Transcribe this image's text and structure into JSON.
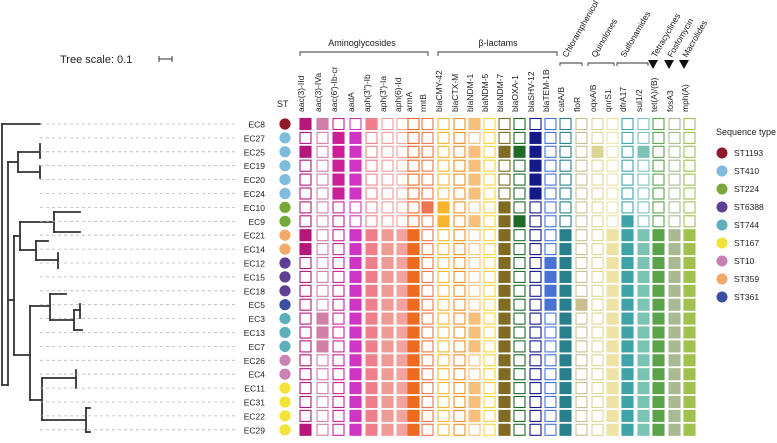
{
  "tree_scale": "Tree scale: 0.1",
  "st_header": "ST",
  "isolates": [
    "EC8",
    "EC27",
    "EC25",
    "EC19",
    "EC20",
    "EC24",
    "EC10",
    "EC9",
    "EC21",
    "EC14",
    "EC12",
    "EC15",
    "EC18",
    "EC5",
    "EC3",
    "EC13",
    "EC7",
    "EC26",
    "EC4",
    "EC11",
    "EC31",
    "EC22",
    "EC29"
  ],
  "isolate_st": [
    "ST1193",
    "ST410",
    "ST410",
    "ST410",
    "ST410",
    "ST410",
    "ST224",
    "ST224",
    "ST359",
    "ST359",
    "ST6388",
    "ST6388",
    "ST6388",
    "ST361",
    "ST744",
    "ST744",
    "ST744",
    "ST10",
    "ST10",
    "ST167",
    "ST167",
    "ST167",
    "ST167"
  ],
  "legend": {
    "title": "Sequence type",
    "items": [
      {
        "label": "ST1193",
        "color": "#8e1a2c"
      },
      {
        "label": "ST410",
        "color": "#7fbcdc"
      },
      {
        "label": "ST224",
        "color": "#78a83c"
      },
      {
        "label": "ST6388",
        "color": "#5e3f94"
      },
      {
        "label": "ST744",
        "color": "#5eafbb"
      },
      {
        "label": "ST167",
        "color": "#f2e23a"
      },
      {
        "label": "ST10",
        "color": "#c983b3"
      },
      {
        "label": "ST359",
        "color": "#f2a96a"
      },
      {
        "label": "ST361",
        "color": "#3a4f9d"
      }
    ]
  },
  "classes": [
    {
      "label": "Aminoglycosides",
      "orientation": "horizontal"
    },
    {
      "label": "β-lactams",
      "orientation": "horizontal"
    },
    {
      "label": "Chloramphenicol",
      "orientation": "angled"
    },
    {
      "label": "Quinolones",
      "orientation": "angled"
    },
    {
      "label": "Sulfonamides",
      "orientation": "angled"
    },
    {
      "label": "Tetracyclines",
      "orientation": "angled"
    },
    {
      "label": "Fosfomycin",
      "orientation": "angled"
    },
    {
      "label": "Macrolides",
      "orientation": "angled"
    }
  ],
  "genes": [
    {
      "label": "aac(3)-IId",
      "color": "#b5177a"
    },
    {
      "label": "aac(3)-IVa",
      "color": "#cf7fa8"
    },
    {
      "label": "aac(6')-Ib-cr",
      "color": "#cc1f95"
    },
    {
      "label": "aadA",
      "color": "#cf35c2"
    },
    {
      "label": "aph(3'')-Ib",
      "color": "#f07f8c"
    },
    {
      "label": "aph(3')-Ia",
      "color": "#ef9b95"
    },
    {
      "label": "aph(6)-Id",
      "color": "#f2a3a0"
    },
    {
      "label": "armA",
      "color": "#ed6a1f"
    },
    {
      "label": "rmtB",
      "color": "#ec7552"
    },
    {
      "label": "blaCMY-42",
      "color": "#f7b42f"
    },
    {
      "label": "blaCTX-M",
      "color": "#f58c1e"
    },
    {
      "label": "blaNDM-1",
      "color": "#f7c07a"
    },
    {
      "label": "blaNDM-5",
      "color": "#f7d23a"
    },
    {
      "label": "blaNDM-7",
      "color": "#7f6b22"
    },
    {
      "label": "blaOXA-1",
      "color": "#1f6b26"
    },
    {
      "label": "blaSHV-12",
      "color": "#151a8a"
    },
    {
      "label": "blaTEM-1B",
      "color": "#4a72d2"
    },
    {
      "label": "catA/B",
      "color": "#2a7f8c"
    },
    {
      "label": "floR",
      "color": "#c8be90"
    },
    {
      "label": "oqxA/B",
      "color": "#ddd595"
    },
    {
      "label": "qnrS1",
      "color": "#eee2a4"
    },
    {
      "label": "dfrA17",
      "color": "#3fa3a8"
    },
    {
      "label": "sul1/2",
      "color": "#7bc3b4"
    },
    {
      "label": "tet(A)/(B)",
      "color": "#5aa34a"
    },
    {
      "label": "fosA3",
      "color": "#a9ba92"
    },
    {
      "label": "mph(A)",
      "color": "#9ec24d"
    }
  ],
  "presence": [
    "11001000000100000000000000",
    "00110000000000010000000000",
    "10110000000101110001001000",
    "00110000000100010000000000",
    "00110000000100010000000000",
    "00110000000100010000000000",
    "00000000110001000000000000",
    "00000000010101100000010000",
    "10011111000001000100111111",
    "10011111000001000100111111",
    "00011111000001001100111111",
    "00011111000001001100111111",
    "00011111000001001100111111",
    "00011111000001001110111111",
    "01011111000101000100111111",
    "01011111000101000100111111",
    "01011111000101000100111111",
    "00011111000001000100111111",
    "00011111000001000100111111",
    "00011111000101000100111111",
    "00011111000101000100111111",
    "00011111000101000100111111",
    "10011111000001000100111111"
  ]
}
